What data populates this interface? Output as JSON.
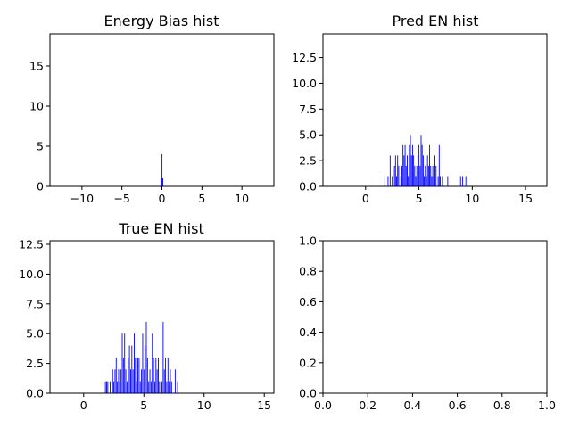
{
  "chart_data": [
    {
      "type": "bar",
      "title": "Energy Bias hist",
      "xlabel": "",
      "ylabel": "",
      "xlim": [
        -14,
        14
      ],
      "ylim": [
        0,
        19
      ],
      "xticks": [
        -10,
        -5,
        0,
        5,
        10
      ],
      "xtick_labels": [
        "−10",
        "−5",
        "0",
        "5",
        "10"
      ],
      "yticks": [
        0,
        5,
        10,
        15
      ],
      "ytick_labels": [
        "0",
        "5",
        "10",
        "15"
      ],
      "bar_color": "#0000ff",
      "bar_width": 0.04,
      "bins": [
        {
          "x": -0.12,
          "count": 1
        },
        {
          "x": -0.02,
          "count": 4
        },
        {
          "x": 0.08,
          "count": 1
        }
      ]
    },
    {
      "type": "bar",
      "title": "Pred EN hist",
      "xlabel": "",
      "ylabel": "",
      "xlim": [
        -4,
        17
      ],
      "ylim": [
        0,
        14.8
      ],
      "xticks": [
        0,
        5,
        10,
        15
      ],
      "xtick_labels": [
        "0",
        "5",
        "10",
        "15"
      ],
      "yticks": [
        0,
        2.5,
        5,
        7.5,
        10,
        12.5
      ],
      "ytick_labels": [
        "0.0",
        "2.5",
        "5.0",
        "7.5",
        "10.0",
        "12.5"
      ],
      "bar_color": "#0000ff",
      "bar_width": 0.07,
      "bins": [
        {
          "x": 1.8,
          "count": 1
        },
        {
          "x": 2.1,
          "count": 1
        },
        {
          "x": 2.3,
          "count": 3
        },
        {
          "x": 2.5,
          "count": 1
        },
        {
          "x": 2.7,
          "count": 2
        },
        {
          "x": 2.8,
          "count": 3
        },
        {
          "x": 2.9,
          "count": 1
        },
        {
          "x": 3.0,
          "count": 3
        },
        {
          "x": 3.1,
          "count": 2
        },
        {
          "x": 3.3,
          "count": 1
        },
        {
          "x": 3.4,
          "count": 2
        },
        {
          "x": 3.5,
          "count": 4
        },
        {
          "x": 3.6,
          "count": 3
        },
        {
          "x": 3.7,
          "count": 4
        },
        {
          "x": 3.8,
          "count": 2
        },
        {
          "x": 3.9,
          "count": 3
        },
        {
          "x": 4.0,
          "count": 1
        },
        {
          "x": 4.1,
          "count": 4
        },
        {
          "x": 4.2,
          "count": 5
        },
        {
          "x": 4.3,
          "count": 3
        },
        {
          "x": 4.4,
          "count": 4
        },
        {
          "x": 4.5,
          "count": 3
        },
        {
          "x": 4.6,
          "count": 2
        },
        {
          "x": 4.7,
          "count": 1
        },
        {
          "x": 4.8,
          "count": 2
        },
        {
          "x": 4.9,
          "count": 3
        },
        {
          "x": 5.0,
          "count": 4
        },
        {
          "x": 5.1,
          "count": 2
        },
        {
          "x": 5.2,
          "count": 5
        },
        {
          "x": 5.3,
          "count": 4
        },
        {
          "x": 5.4,
          "count": 3
        },
        {
          "x": 5.5,
          "count": 1
        },
        {
          "x": 5.6,
          "count": 2
        },
        {
          "x": 5.7,
          "count": 1
        },
        {
          "x": 5.8,
          "count": 3
        },
        {
          "x": 5.9,
          "count": 2
        },
        {
          "x": 6.0,
          "count": 4
        },
        {
          "x": 6.1,
          "count": 2
        },
        {
          "x": 6.2,
          "count": 1
        },
        {
          "x": 6.3,
          "count": 2
        },
        {
          "x": 6.4,
          "count": 1
        },
        {
          "x": 6.5,
          "count": 3
        },
        {
          "x": 6.6,
          "count": 2
        },
        {
          "x": 6.8,
          "count": 1
        },
        {
          "x": 6.9,
          "count": 4
        },
        {
          "x": 7.0,
          "count": 1
        },
        {
          "x": 7.2,
          "count": 1
        },
        {
          "x": 7.7,
          "count": 1
        },
        {
          "x": 8.9,
          "count": 1
        },
        {
          "x": 9.1,
          "count": 1
        },
        {
          "x": 9.4,
          "count": 1
        }
      ]
    },
    {
      "type": "bar",
      "title": "True EN hist",
      "xlabel": "",
      "ylabel": "",
      "xlim": [
        -2.8,
        15.8
      ],
      "ylim": [
        0,
        12.8
      ],
      "xticks": [
        0,
        5,
        10,
        15
      ],
      "xtick_labels": [
        "0",
        "5",
        "10",
        "15"
      ],
      "yticks": [
        0,
        2.5,
        5,
        7.5,
        10,
        12.5
      ],
      "ytick_labels": [
        "0.0",
        "2.5",
        "5.0",
        "7.5",
        "10.0",
        "12.5"
      ],
      "bar_color": "#0000ff",
      "bar_width": 0.06,
      "bins": [
        {
          "x": 1.6,
          "count": 1
        },
        {
          "x": 1.8,
          "count": 1
        },
        {
          "x": 1.9,
          "count": 1
        },
        {
          "x": 2.0,
          "count": 1
        },
        {
          "x": 2.2,
          "count": 1
        },
        {
          "x": 2.4,
          "count": 2
        },
        {
          "x": 2.5,
          "count": 1
        },
        {
          "x": 2.6,
          "count": 2
        },
        {
          "x": 2.7,
          "count": 3
        },
        {
          "x": 2.8,
          "count": 1
        },
        {
          "x": 2.9,
          "count": 2
        },
        {
          "x": 3.0,
          "count": 1
        },
        {
          "x": 3.1,
          "count": 2
        },
        {
          "x": 3.2,
          "count": 5
        },
        {
          "x": 3.3,
          "count": 3
        },
        {
          "x": 3.4,
          "count": 5
        },
        {
          "x": 3.5,
          "count": 2
        },
        {
          "x": 3.6,
          "count": 1
        },
        {
          "x": 3.7,
          "count": 3
        },
        {
          "x": 3.8,
          "count": 4
        },
        {
          "x": 3.9,
          "count": 2
        },
        {
          "x": 4.0,
          "count": 4
        },
        {
          "x": 4.1,
          "count": 2
        },
        {
          "x": 4.2,
          "count": 5
        },
        {
          "x": 4.3,
          "count": 3
        },
        {
          "x": 4.4,
          "count": 1
        },
        {
          "x": 4.5,
          "count": 3
        },
        {
          "x": 4.6,
          "count": 3
        },
        {
          "x": 4.7,
          "count": 1
        },
        {
          "x": 4.8,
          "count": 2
        },
        {
          "x": 4.9,
          "count": 5
        },
        {
          "x": 5.0,
          "count": 2
        },
        {
          "x": 5.1,
          "count": 4
        },
        {
          "x": 5.2,
          "count": 6
        },
        {
          "x": 5.3,
          "count": 3
        },
        {
          "x": 5.4,
          "count": 1
        },
        {
          "x": 5.5,
          "count": 2
        },
        {
          "x": 5.6,
          "count": 1
        },
        {
          "x": 5.7,
          "count": 5
        },
        {
          "x": 5.8,
          "count": 3
        },
        {
          "x": 5.9,
          "count": 1
        },
        {
          "x": 6.0,
          "count": 3
        },
        {
          "x": 6.1,
          "count": 2
        },
        {
          "x": 6.2,
          "count": 3
        },
        {
          "x": 6.3,
          "count": 1
        },
        {
          "x": 6.5,
          "count": 1
        },
        {
          "x": 6.6,
          "count": 6
        },
        {
          "x": 6.7,
          "count": 2
        },
        {
          "x": 6.8,
          "count": 3
        },
        {
          "x": 6.9,
          "count": 1
        },
        {
          "x": 7.0,
          "count": 3
        },
        {
          "x": 7.1,
          "count": 1
        },
        {
          "x": 7.2,
          "count": 2
        },
        {
          "x": 7.3,
          "count": 1
        },
        {
          "x": 7.6,
          "count": 2
        },
        {
          "x": 7.8,
          "count": 1
        }
      ]
    },
    {
      "type": "bar",
      "title": "",
      "xlabel": "",
      "ylabel": "",
      "xlim": [
        0,
        1
      ],
      "ylim": [
        0,
        1
      ],
      "xticks": [
        0,
        0.2,
        0.4,
        0.6,
        0.8,
        1.0
      ],
      "xtick_labels": [
        "0.0",
        "0.2",
        "0.4",
        "0.6",
        "0.8",
        "1.0"
      ],
      "yticks": [
        0,
        0.2,
        0.4,
        0.6,
        0.8,
        1.0
      ],
      "ytick_labels": [
        "0.0",
        "0.2",
        "0.4",
        "0.6",
        "0.8",
        "1.0"
      ],
      "bar_color": "#0000ff",
      "bar_width": 0,
      "bins": []
    }
  ]
}
